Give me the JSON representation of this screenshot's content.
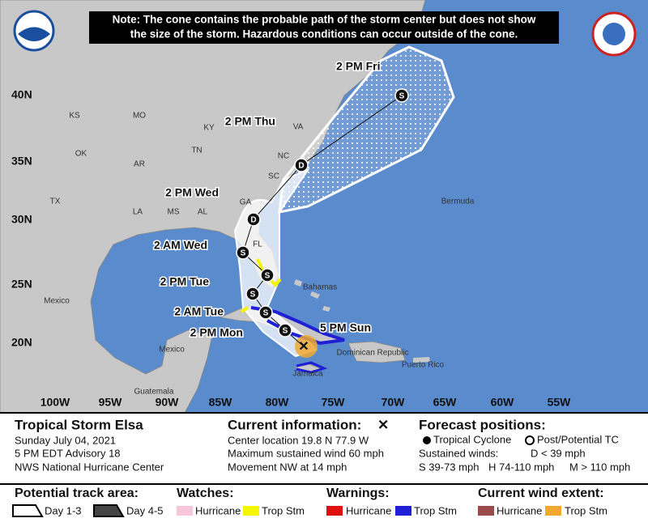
{
  "map": {
    "note": [
      "Note: The cone contains the probable path of the storm center but does not show",
      "the size of the storm. Hazardous conditions can occur outside of the cone."
    ],
    "latitudes": [
      "40N",
      "35N",
      "30N",
      "25N",
      "20N"
    ],
    "longitudes": [
      "100W",
      "95W",
      "90W",
      "85W",
      "80W",
      "75W",
      "70W",
      "65W",
      "60W",
      "55W"
    ],
    "places": [
      "KS",
      "MO",
      "KY",
      "VA",
      "OK",
      "AR",
      "TN",
      "NC",
      "SC",
      "TX",
      "MS",
      "AL",
      "GA",
      "LA",
      "FL",
      "Bermuda",
      "Bahamas",
      "Mexico",
      "Mexico",
      "Guatemala",
      "Jamaica",
      "Dominican Republic",
      "Puerto Rico"
    ],
    "forecast": [
      {
        "time": "5 PM Sun",
        "intensity": "S"
      },
      {
        "time": "2 PM Mon",
        "intensity": "S"
      },
      {
        "time": "2 AM Tue",
        "intensity": "S"
      },
      {
        "time": "2 PM Tue",
        "intensity": "S"
      },
      {
        "time": "2 AM Wed",
        "intensity": "S"
      },
      {
        "time": "2 PM Wed",
        "intensity": "D"
      },
      {
        "time": "2 PM Thu",
        "intensity": "D"
      },
      {
        "time": "2 PM Fri",
        "intensity": "S"
      }
    ]
  },
  "legend": {
    "storm": "Tropical Storm Elsa",
    "date": "Sunday July 04, 2021",
    "advisory": "5 PM EDT Advisory 18",
    "agency": "NWS National Hurricane Center",
    "current_title": "Current information:",
    "current_symbol": "✕",
    "current_lines": [
      "Center location 19.8 N 77.9 W",
      "Maximum sustained wind 60 mph",
      "Movement NW at 14 mph"
    ],
    "forecast_title": "Forecast positions:",
    "tropical_cyclone": "Tropical Cyclone",
    "post_tc": "Post/Potential TC",
    "sustained": "Sustained winds:",
    "winds": [
      "D < 39 mph",
      "S 39-73 mph",
      "H 74-110 mph",
      "M > 110 mph"
    ],
    "track_title": "Potential track area:",
    "day13": "Day 1-3",
    "day45": "Day 4-5",
    "watches_title": "Watches:",
    "watches": [
      "Hurricane",
      "Trop Stm"
    ],
    "warnings_title": "Warnings:",
    "warnings": [
      "Hurricane",
      "Trop Stm"
    ],
    "extent_title": "Current wind extent:",
    "extent": [
      "Hurricane",
      "Trop Stm"
    ]
  }
}
